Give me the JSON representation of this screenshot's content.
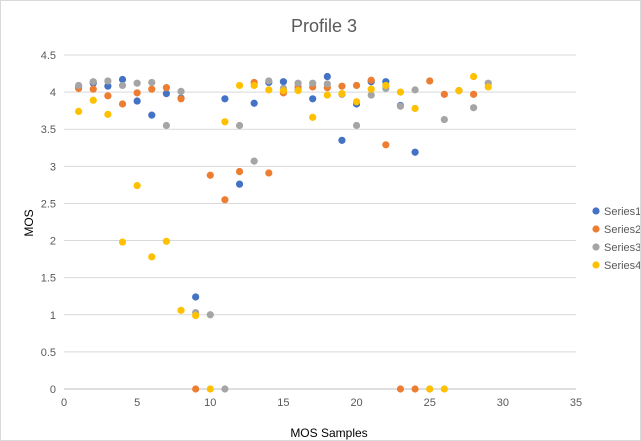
{
  "chart_data": {
    "type": "scatter",
    "title": "Profile 3",
    "xlabel": "MOS Samples",
    "ylabel": "MOS",
    "xlim": [
      0,
      35
    ],
    "ylim": [
      0,
      4.5
    ],
    "x_ticks": [
      "0",
      "5",
      "10",
      "15",
      "20",
      "25",
      "30",
      "35"
    ],
    "y_ticks": [
      "0",
      "0.5",
      "1",
      "1.5",
      "2",
      "2.5",
      "3",
      "3.5",
      "4",
      "4.5"
    ],
    "grid": "horizontal",
    "legend_position": "right",
    "series": [
      {
        "name": "Series1",
        "color": "#4472C4",
        "points": [
          [
            1,
            4.07
          ],
          [
            2,
            4.12
          ],
          [
            3,
            4.08
          ],
          [
            4,
            4.17
          ],
          [
            5,
            3.88
          ],
          [
            6,
            3.69
          ],
          [
            7,
            3.98
          ],
          [
            8,
            3.92
          ],
          [
            9,
            1.24
          ],
          [
            11,
            3.91
          ],
          [
            12,
            2.76
          ],
          [
            13,
            3.85
          ],
          [
            14,
            4.13
          ],
          [
            15,
            4.14
          ],
          [
            16,
            4.03
          ],
          [
            17,
            3.91
          ],
          [
            18,
            4.21
          ],
          [
            19,
            3.35
          ],
          [
            20,
            3.84
          ],
          [
            21,
            4.14
          ],
          [
            22,
            4.14
          ],
          [
            23,
            3.82
          ],
          [
            24,
            3.19
          ]
        ]
      },
      {
        "name": "Series2",
        "color": "#ED7D31",
        "points": [
          [
            1,
            4.05
          ],
          [
            2,
            4.04
          ],
          [
            3,
            3.95
          ],
          [
            4,
            3.84
          ],
          [
            5,
            3.99
          ],
          [
            6,
            4.04
          ],
          [
            7,
            4.06
          ],
          [
            8,
            3.91
          ],
          [
            9,
            0
          ],
          [
            10,
            2.88
          ],
          [
            11,
            2.55
          ],
          [
            12,
            2.93
          ],
          [
            13,
            4.13
          ],
          [
            14,
            2.91
          ],
          [
            15,
            3.99
          ],
          [
            16,
            4.07
          ],
          [
            17,
            4.07
          ],
          [
            18,
            4.06
          ],
          [
            19,
            4.08
          ],
          [
            20,
            4.09
          ],
          [
            21,
            4.16
          ],
          [
            22,
            3.29
          ],
          [
            23,
            0
          ],
          [
            24,
            0
          ],
          [
            25,
            4.15
          ],
          [
            26,
            3.97
          ],
          [
            27,
            4.02
          ],
          [
            28,
            3.97
          ]
        ]
      },
      {
        "name": "Series3",
        "color": "#A5A5A5",
        "points": [
          [
            1,
            4.09
          ],
          [
            2,
            4.14
          ],
          [
            3,
            4.15
          ],
          [
            4,
            4.09
          ],
          [
            5,
            4.12
          ],
          [
            6,
            4.13
          ],
          [
            7,
            3.55
          ],
          [
            8,
            4.01
          ],
          [
            9,
            1.03
          ],
          [
            10,
            1.0
          ],
          [
            11,
            0
          ],
          [
            12,
            3.55
          ],
          [
            13,
            3.07
          ],
          [
            14,
            4.15
          ],
          [
            15,
            4.05
          ],
          [
            16,
            4.12
          ],
          [
            17,
            4.12
          ],
          [
            18,
            4.11
          ],
          [
            19,
            3.97
          ],
          [
            20,
            3.55
          ],
          [
            21,
            3.96
          ],
          [
            22,
            4.05
          ],
          [
            23,
            3.81
          ],
          [
            24,
            4.03
          ],
          [
            25,
            0
          ],
          [
            26,
            3.63
          ],
          [
            27,
            4.02
          ],
          [
            28,
            3.79
          ],
          [
            29,
            4.12
          ]
        ]
      },
      {
        "name": "Series4",
        "color": "#FFC000",
        "points": [
          [
            1,
            3.74
          ],
          [
            2,
            3.89
          ],
          [
            3,
            3.7
          ],
          [
            4,
            1.98
          ],
          [
            5,
            2.74
          ],
          [
            6,
            1.78
          ],
          [
            7,
            1.99
          ],
          [
            8,
            1.06
          ],
          [
            9,
            0.99
          ],
          [
            10,
            0
          ],
          [
            11,
            3.6
          ],
          [
            12,
            4.09
          ],
          [
            13,
            4.09
          ],
          [
            14,
            4.03
          ],
          [
            15,
            4.02
          ],
          [
            16,
            4.02
          ],
          [
            17,
            3.66
          ],
          [
            18,
            3.96
          ],
          [
            19,
            3.98
          ],
          [
            20,
            3.87
          ],
          [
            21,
            4.04
          ],
          [
            22,
            4.09
          ],
          [
            23,
            4.0
          ],
          [
            24,
            3.78
          ],
          [
            25,
            0
          ],
          [
            26,
            0
          ],
          [
            27,
            4.02
          ],
          [
            28,
            4.21
          ],
          [
            29,
            4.07
          ]
        ]
      }
    ]
  }
}
